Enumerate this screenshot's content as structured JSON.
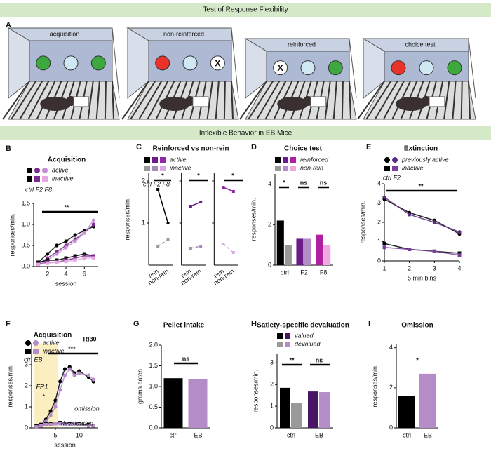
{
  "banners": [
    "Test of Response Flexibility",
    "Inflexible Behavior in EB Mice"
  ],
  "panel_a": {
    "label": "A",
    "boxes": [
      {
        "title": "acquisition",
        "lights": [
          "#3da83d",
          "#cfe8f3",
          "#3da83d"
        ]
      },
      {
        "title": "non-reinforced",
        "lights": [
          "#e8322a",
          "#cfe8f3",
          "X"
        ]
      },
      {
        "title": "reinforced",
        "lights": [
          "X",
          "#cfe8f3",
          "#3da83d"
        ]
      },
      {
        "title": "choice test",
        "lights": [
          "#e8322a",
          "#cfe8f3",
          "#3da83d"
        ]
      }
    ]
  },
  "chart_data": [
    {
      "type": "line",
      "label": "B",
      "title": "Acquisition",
      "groups": "ctrl F2 F8",
      "xlabel": "session",
      "ylabel": "responses/min.",
      "x": [
        1,
        2,
        3,
        4,
        5,
        6,
        7
      ],
      "xlim": [
        0.5,
        7.5
      ],
      "xticks": [
        2,
        4,
        6
      ],
      "ylim": [
        0,
        1.5
      ],
      "yticks": [
        {
          "value": 0,
          "label": "0.0"
        },
        0.5,
        {
          "value": 1,
          "label": "1.0"
        },
        1.5
      ],
      "series": [
        {
          "name": "active",
          "marker": "circle",
          "colors": [
            "#000000",
            "#7b2d8e",
            "#c48fd6"
          ],
          "values": [
            [
              0.1,
              0.3,
              0.5,
              0.6,
              0.75,
              0.85,
              0.95
            ],
            [
              0.05,
              0.2,
              0.35,
              0.5,
              0.65,
              0.8,
              1.0
            ],
            [
              0.05,
              0.15,
              0.3,
              0.45,
              0.6,
              0.8,
              1.1
            ]
          ]
        },
        {
          "name": "inactive",
          "marker": "square",
          "colors": [
            "#000000",
            "#7b2d8e",
            "#e6a8e0"
          ],
          "values": [
            [
              0.1,
              0.15,
              0.15,
              0.2,
              0.25,
              0.3,
              0.25
            ],
            [
              0.05,
              0.1,
              0.1,
              0.15,
              0.2,
              0.25,
              0.25
            ],
            [
              0.05,
              0.08,
              0.1,
              0.12,
              0.15,
              0.2,
              0.2
            ]
          ]
        }
      ],
      "annotations": [
        "**"
      ]
    },
    {
      "type": "paired",
      "label": "C",
      "title": "Reinforced vs non-rein",
      "groups": "ctrl F2 F8",
      "ylabel": "responses/min.",
      "categories": [
        "rein",
        "non-rein"
      ],
      "ylim": [
        0,
        2.2
      ],
      "yticks": [
        1,
        2
      ],
      "series": [
        {
          "name": "active",
          "marker": "square",
          "dash": false,
          "colors": [
            "#000000",
            "#6a1b8a",
            "#8e2aa8"
          ],
          "values": [
            [
              1.8,
              1.0
            ],
            [
              1.4,
              1.5
            ],
            [
              1.85,
              1.75
            ]
          ]
        },
        {
          "name": "inactive",
          "marker": "square",
          "dash": true,
          "colors": [
            "#999999",
            "#a58ab5",
            "#d9a8e6"
          ],
          "values": [
            [
              0.45,
              0.6
            ],
            [
              0.4,
              0.45
            ],
            [
              0.5,
              0.3
            ]
          ]
        }
      ],
      "annotations": [
        "*",
        "*",
        "*"
      ]
    },
    {
      "type": "bar",
      "label": "D",
      "title": "Choice test",
      "ylabel": "responses/min.",
      "categories": [
        "ctrl",
        "F2",
        "F8"
      ],
      "ylim": [
        0,
        4.5
      ],
      "yticks": [
        0,
        2,
        4
      ],
      "series": [
        {
          "name": "reinforced",
          "colors": [
            "#000000",
            "#6a1b8a",
            "#b01fa0"
          ],
          "values": [
            2.2,
            1.3,
            1.5
          ]
        },
        {
          "name": "non-rein",
          "colors": [
            "#999999",
            "#b48cc8",
            "#f0a8e0"
          ],
          "values": [
            1.0,
            1.3,
            1.0
          ]
        }
      ],
      "annotations": [
        "*",
        "ns",
        "ns"
      ]
    },
    {
      "type": "line",
      "label": "E",
      "title": "Extinction",
      "groups": "ctrl F2",
      "xlabel": "5 min bins",
      "ylabel": "responses/min.",
      "x": [
        1,
        2,
        3,
        4
      ],
      "xlim": [
        1,
        4
      ],
      "xticks": [
        1,
        2,
        3,
        4
      ],
      "ylim": [
        0,
        4
      ],
      "yticks": [
        0,
        1,
        2,
        3,
        4
      ],
      "series": [
        {
          "name": "previously active",
          "marker": "circle",
          "colors": [
            "#000000",
            "#5a2d82"
          ],
          "values": [
            [
              3.2,
              2.5,
              2.1,
              1.4
            ],
            [
              3.3,
              2.4,
              2.0,
              1.5
            ]
          ]
        },
        {
          "name": "inactive",
          "marker": "square",
          "colors": [
            "#000000",
            "#7b3fa0"
          ],
          "values": [
            [
              0.9,
              0.6,
              0.5,
              0.4
            ],
            [
              0.7,
              0.6,
              0.5,
              0.3
            ]
          ]
        }
      ],
      "annotations": [
        "**"
      ]
    },
    {
      "type": "line",
      "label": "F",
      "title": "Acquisition",
      "groups": "ctrl EB",
      "xlabel": "session",
      "ylabel": "responses/min.",
      "x": [
        1,
        2,
        3,
        4,
        5,
        6,
        7,
        8,
        9,
        10,
        12,
        13
      ],
      "xlim": [
        0,
        14
      ],
      "xticks": [
        5,
        10
      ],
      "ylim": [
        0,
        4
      ],
      "yticks": [
        0,
        1,
        2,
        3,
        4
      ],
      "shaded_sessions": [
        0.5,
        5.5
      ],
      "shade_color": "#fbeec0",
      "series": [
        {
          "name": "active",
          "marker": "circle",
          "colors": [
            "#000000",
            "#b48cc8"
          ],
          "values": [
            [
              0.1,
              0.2,
              0.4,
              0.8,
              1.3,
              2.2,
              2.8,
              2.9,
              2.6,
              2.7,
              2.4,
              2.2
            ],
            [
              0.1,
              0.2,
              0.3,
              0.6,
              1.0,
              1.8,
              2.5,
              2.8,
              2.5,
              2.6,
              2.5,
              2.3
            ]
          ]
        },
        {
          "name": "inactive",
          "marker": "square",
          "colors": [
            "#000000",
            "#b48cc8"
          ],
          "values": [
            [
              0.1,
              0.15,
              0.2,
              0.2,
              0.2,
              0.25,
              0.2,
              0.2,
              0.2,
              0.2,
              0.15,
              0.1
            ],
            [
              0.05,
              0.1,
              0.15,
              0.15,
              0.2,
              0.2,
              0.2,
              0.15,
              0.2,
              0.15,
              0.1,
              0.1
            ]
          ]
        }
      ],
      "annotations": [
        "RI30",
        "FR1",
        "***",
        "*",
        "devaluation",
        "omission"
      ]
    },
    {
      "type": "bar",
      "label": "G",
      "title": "Pellet intake",
      "ylabel": "grams eaten",
      "categories": [
        "ctrl",
        "EB"
      ],
      "ylim": [
        0,
        2
      ],
      "yticks": [
        {
          "value": 0,
          "label": "0.0"
        },
        0.5,
        {
          "value": 1,
          "label": "1.0"
        },
        1.5,
        {
          "value": 2,
          "label": "2.0"
        }
      ],
      "series": [
        {
          "colors": [
            "#000000",
            "#b48cc8"
          ],
          "values": [
            1.2,
            1.18
          ]
        }
      ],
      "annotations": [
        "ns"
      ]
    },
    {
      "type": "bar",
      "label": "H",
      "title": "Satiety-specific devaluation",
      "ylabel": "responses/min.",
      "categories": [
        "ctrl",
        "EB"
      ],
      "ylim": [
        0,
        3.4
      ],
      "yticks": [
        0,
        1,
        2,
        3
      ],
      "series": [
        {
          "name": "valued",
          "colors": [
            "#000000",
            "#4a1466"
          ],
          "values": [
            1.85,
            1.68
          ]
        },
        {
          "name": "devalued",
          "colors": [
            "#999999",
            "#b48cc8"
          ],
          "values": [
            1.15,
            1.65
          ]
        }
      ],
      "annotations": [
        "**",
        "ns"
      ]
    },
    {
      "type": "bar",
      "label": "I",
      "title": "Omission",
      "ylabel": "responses/min.",
      "categories": [
        "ctrl",
        "EB"
      ],
      "ylim": [
        0,
        4.2
      ],
      "yticks": [
        0,
        2,
        4
      ],
      "series": [
        {
          "colors": [
            "#000000",
            "#b48cc8"
          ],
          "values": [
            1.6,
            2.7
          ]
        }
      ],
      "annotations": [
        "*"
      ]
    }
  ]
}
